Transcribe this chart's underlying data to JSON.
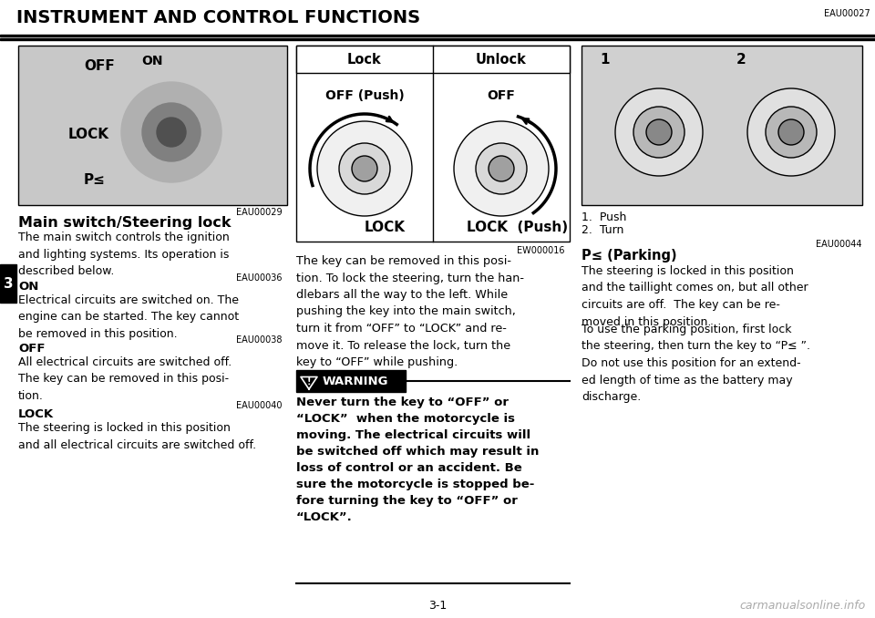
{
  "title": "INSTRUMENT AND CONTROL FUNCTIONS",
  "title_code": "EAU00027",
  "page_number": "3-1",
  "watermark": "carmanualsonline.info",
  "tab_number": "3",
  "bg_color": "#ffffff",
  "section1_code": "EAU00029",
  "section1_header": "Main switch/Steering lock",
  "section1_body": "The main switch controls the ignition\nand lighting systems. Its operation is\ndescribed below.",
  "on_code": "EAU00036",
  "on_header": "ON",
  "on_body": "Electrical circuits are switched on. The\nengine can be started. The key cannot\nbe removed in this position.",
  "off_code": "EAU00038",
  "off_header": "OFF",
  "off_body": "All electrical circuits are switched off.\nThe key can be removed in this posi-\ntion.",
  "lock_code": "EAU00040",
  "lock_header": "LOCK",
  "lock_body": "The steering is locked in this position\nand all electrical circuits are switched off.",
  "table_lock_header": "Lock",
  "table_unlock_header": "Unlock",
  "table_lock_top": "OFF (Push)",
  "table_lock_bottom": "LOCK",
  "table_unlock_top": "OFF",
  "table_unlock_bottom": "LOCK  (Push)",
  "mid_text": "The key can be removed in this posi-\ntion. To lock the steering, turn the han-\ndlebars all the way to the left. While\npushing the key into the main switch,\nturn it from “OFF” to “LOCK” and re-\nmove it. To release the lock, turn the\nkey to “OFF” while pushing.",
  "mid_code": "EW000016",
  "warning_label": "WARNING",
  "warning_text": "Never turn the key to “OFF” or\n“LOCK”  when the motorcycle is\nmoving. The electrical circuits will\nbe switched off which may result in\nloss of control or an accident. Be\nsure the motorcycle is stopped be-\nfore turning the key to “OFF” or\n“LOCK”.",
  "right_label1": "1",
  "right_label2": "2",
  "push_label": "1.  Push",
  "turn_label": "2.  Turn",
  "right_code": "EAU00044",
  "parking_header": "P≤ (Parking)",
  "parking_body1": "The steering is locked in this position\nand the taillight comes on, but all other\ncircuits are off.  The key can be re-\nmoved in this position.",
  "parking_body2": "To use the parking position, first lock\nthe steering, then turn the key to “P≤ ”.\nDo not use this position for an extend-\ned length of time as the battery may\ndischarge."
}
